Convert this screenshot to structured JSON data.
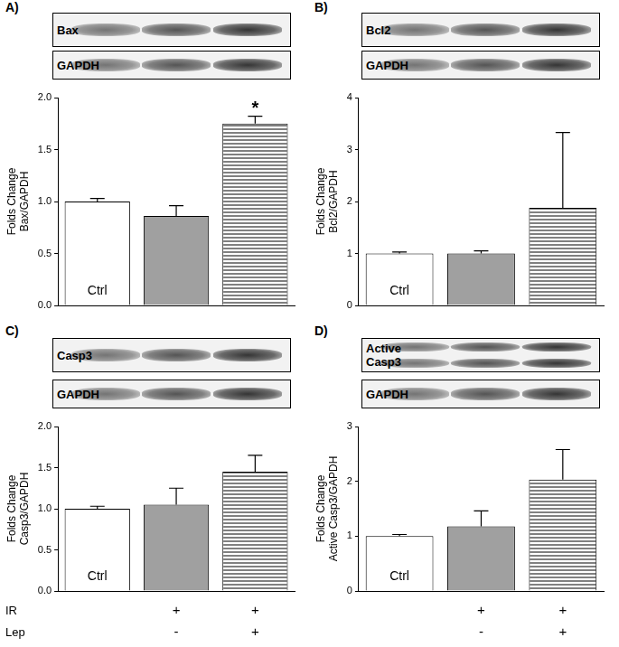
{
  "chart_data": [
    {
      "type": "bar",
      "title": "A)",
      "blots": [
        [
          "Bax"
        ],
        [
          "GAPDH"
        ]
      ],
      "categories": [
        "Ctrl",
        null,
        null
      ],
      "values": [
        1.0,
        0.86,
        1.75
      ],
      "errors": [
        0.03,
        0.1,
        0.07
      ],
      "colors": [
        "#ffffff",
        "#a0a0a0",
        "#808080"
      ],
      "ylabel": [
        "Folds Change",
        "Bax/GAPDH"
      ],
      "ylim": [
        0,
        2
      ],
      "yticks": [
        {
          "value": 0,
          "label": "0.0"
        },
        0.5,
        {
          "value": 1,
          "label": "1.0"
        },
        1.5,
        {
          "value": 2,
          "label": "2.0"
        }
      ],
      "bar_annotations": [
        null,
        null,
        "*"
      ],
      "grid": false
    },
    {
      "type": "bar",
      "title": "B)",
      "blots": [
        [
          "Bcl2"
        ],
        [
          "GAPDH"
        ]
      ],
      "categories": [
        "Ctrl",
        null,
        null
      ],
      "values": [
        1.0,
        1.0,
        1.88
      ],
      "errors": [
        0.03,
        0.05,
        1.45
      ],
      "colors": [
        "#ffffff",
        "#a0a0a0",
        "#808080"
      ],
      "ylabel": [
        "Folds Change",
        "Bcl2/GAPDH"
      ],
      "ylim": [
        0,
        4
      ],
      "yticks": [
        0,
        1,
        2,
        3,
        4
      ],
      "grid": false
    },
    {
      "type": "bar",
      "title": "C)",
      "blots": [
        [
          "Casp3"
        ],
        [
          "GAPDH"
        ]
      ],
      "categories": [
        "Ctrl",
        null,
        null
      ],
      "values": [
        1.0,
        1.05,
        1.45
      ],
      "errors": [
        0.03,
        0.2,
        0.2
      ],
      "colors": [
        "#ffffff",
        "#a0a0a0",
        "#808080"
      ],
      "ylabel": [
        "Folds Change",
        "Casp3/GAPDH"
      ],
      "ylim": [
        0,
        2
      ],
      "yticks": [
        {
          "value": 0,
          "label": "0.0"
        },
        0.5,
        {
          "value": 1,
          "label": "1.0"
        },
        1.5,
        {
          "value": 2,
          "label": "2.0"
        }
      ],
      "grid": false,
      "treatments": [
        {
          "label": "IR",
          "values": [
            null,
            "+",
            "+"
          ]
        },
        {
          "label": "Lep",
          "values": [
            null,
            "-",
            "+"
          ]
        }
      ]
    },
    {
      "type": "bar",
      "title": "D)",
      "blots": [
        [
          "Active",
          "Casp3"
        ],
        [
          "GAPDH"
        ]
      ],
      "categories": [
        "Ctrl",
        null,
        null
      ],
      "values": [
        1.0,
        1.18,
        2.03
      ],
      "errors": [
        0.03,
        0.28,
        0.55
      ],
      "colors": [
        "#ffffff",
        "#a0a0a0",
        "#808080"
      ],
      "ylabel": [
        "Folds Change",
        "Active Casp3/GAPDH"
      ],
      "ylim": [
        0,
        3
      ],
      "yticks": [
        0,
        1,
        2,
        3
      ],
      "grid": false,
      "treatments": [
        {
          "values": [
            null,
            "+",
            "+"
          ]
        },
        {
          "values": [
            null,
            "-",
            "+"
          ]
        }
      ]
    }
  ]
}
